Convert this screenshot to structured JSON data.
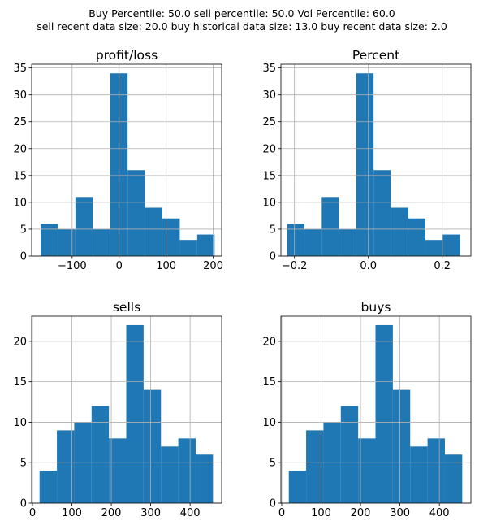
{
  "suptitle": [
    "Buy Percentile: 50.0 sell percentile: 50.0 Vol Percentile: 60.0",
    "sell recent data size: 20.0 buy historical data size: 13.0 buy recent data size: 2.0"
  ],
  "colors": {
    "bar": "#1f77b4",
    "grid": "#b0b0b0",
    "axis": "#000000"
  },
  "chart_data": [
    {
      "type": "bar",
      "title": "profit/loss",
      "grid": true,
      "xlim": [
        -186,
        218
      ],
      "ylim": [
        0,
        35.7
      ],
      "xticks": [
        -100,
        0,
        100,
        200
      ],
      "xtick_labels": [
        "−100",
        "0",
        "100",
        "200"
      ],
      "yticks": [
        0,
        5,
        10,
        15,
        20,
        25,
        30,
        35
      ],
      "bin_edges": [
        -167,
        -130,
        -93,
        -56,
        -19,
        18,
        55,
        92,
        129,
        166,
        203
      ],
      "values": [
        6,
        5,
        11,
        5,
        34,
        16,
        9,
        7,
        3,
        4
      ]
    },
    {
      "type": "bar",
      "title": "Percent",
      "grid": true,
      "xlim": [
        -0.2366,
        0.2776
      ],
      "ylim": [
        0,
        35.7
      ],
      "xticks": [
        -0.2,
        0.0,
        0.2
      ],
      "xtick_labels": [
        "−0.2",
        "0.0",
        "0.2"
      ],
      "yticks": [
        0,
        5,
        10,
        15,
        20,
        25,
        30,
        35
      ],
      "bin_edges": [
        -0.2195,
        -0.1728,
        -0.126,
        -0.0793,
        -0.0325,
        0.0143,
        0.061,
        0.1078,
        0.1545,
        0.2013,
        0.2481
      ],
      "values": [
        6,
        5,
        11,
        5,
        34,
        16,
        9,
        7,
        3,
        4
      ]
    },
    {
      "type": "bar",
      "title": "sells",
      "grid": true,
      "xlim": [
        -2,
        480
      ],
      "ylim": [
        0,
        23.1
      ],
      "xticks": [
        0,
        100,
        200,
        300,
        400
      ],
      "xtick_labels": [
        "0",
        "100",
        "200",
        "300",
        "400"
      ],
      "yticks": [
        0,
        5,
        10,
        15,
        20
      ],
      "bin_edges": [
        18,
        62,
        106,
        150,
        194,
        238,
        282,
        326,
        370,
        414,
        458
      ],
      "values": [
        4,
        9,
        10,
        12,
        8,
        22,
        14,
        7,
        8,
        6
      ]
    },
    {
      "type": "bar",
      "title": "buys",
      "grid": true,
      "xlim": [
        -2,
        480
      ],
      "ylim": [
        0,
        23.1
      ],
      "xticks": [
        0,
        100,
        200,
        300,
        400
      ],
      "xtick_labels": [
        "0",
        "100",
        "200",
        "300",
        "400"
      ],
      "yticks": [
        0,
        5,
        10,
        15,
        20
      ],
      "bin_edges": [
        18,
        62,
        106,
        150,
        194,
        238,
        282,
        326,
        370,
        414,
        458
      ],
      "values": [
        4,
        9,
        10,
        12,
        8,
        22,
        14,
        7,
        8,
        6
      ]
    }
  ]
}
